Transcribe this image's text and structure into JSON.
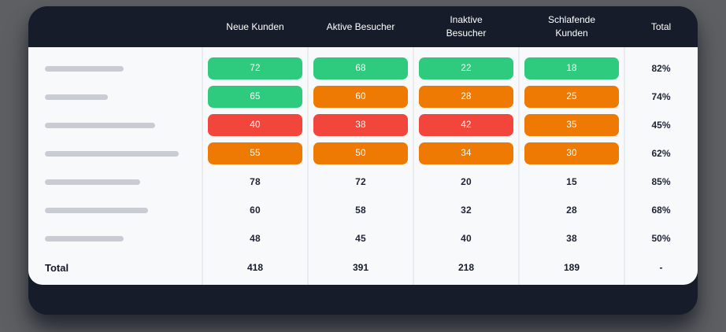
{
  "colors": {
    "card_bg": "#171c2b",
    "body_bg": "#f8f9fb",
    "green": "#2ecb7e",
    "orange": "#ee7a03",
    "red": "#f2453c",
    "separator": "#e9ebef",
    "skeleton": "#c9ccd3"
  },
  "table": {
    "columns": [
      {
        "label": "Neue Kunden"
      },
      {
        "label": "Aktive Besucher"
      },
      {
        "label": "Inaktive Besucher"
      },
      {
        "label": "Schlafende Kunden"
      },
      {
        "label": "Total"
      }
    ],
    "rows": [
      {
        "cells": [
          {
            "value": "72",
            "variant": "green"
          },
          {
            "value": "68",
            "variant": "green"
          },
          {
            "value": "22",
            "variant": "green"
          },
          {
            "value": "18",
            "variant": "green"
          }
        ],
        "total": "82%"
      },
      {
        "cells": [
          {
            "value": "65",
            "variant": "green"
          },
          {
            "value": "60",
            "variant": "orange"
          },
          {
            "value": "28",
            "variant": "orange"
          },
          {
            "value": "25",
            "variant": "orange"
          }
        ],
        "total": "74%"
      },
      {
        "cells": [
          {
            "value": "40",
            "variant": "red"
          },
          {
            "value": "38",
            "variant": "red"
          },
          {
            "value": "42",
            "variant": "red"
          },
          {
            "value": "35",
            "variant": "orange"
          }
        ],
        "total": "45%"
      },
      {
        "cells": [
          {
            "value": "55",
            "variant": "orange"
          },
          {
            "value": "50",
            "variant": "orange"
          },
          {
            "value": "34",
            "variant": "orange"
          },
          {
            "value": "30",
            "variant": "orange"
          }
        ],
        "total": "62%"
      },
      {
        "cells": [
          {
            "value": "78",
            "variant": "plain"
          },
          {
            "value": "72",
            "variant": "plain"
          },
          {
            "value": "20",
            "variant": "plain"
          },
          {
            "value": "15",
            "variant": "plain"
          }
        ],
        "total": "85%"
      },
      {
        "cells": [
          {
            "value": "60",
            "variant": "plain"
          },
          {
            "value": "58",
            "variant": "plain"
          },
          {
            "value": "32",
            "variant": "plain"
          },
          {
            "value": "28",
            "variant": "plain"
          }
        ],
        "total": "68%"
      },
      {
        "cells": [
          {
            "value": "48",
            "variant": "plain"
          },
          {
            "value": "45",
            "variant": "plain"
          },
          {
            "value": "40",
            "variant": "plain"
          },
          {
            "value": "38",
            "variant": "plain"
          }
        ],
        "total": "50%"
      }
    ],
    "total_row": {
      "label": "Total",
      "values": [
        "418",
        "391",
        "218",
        "189"
      ],
      "total": "-"
    }
  }
}
